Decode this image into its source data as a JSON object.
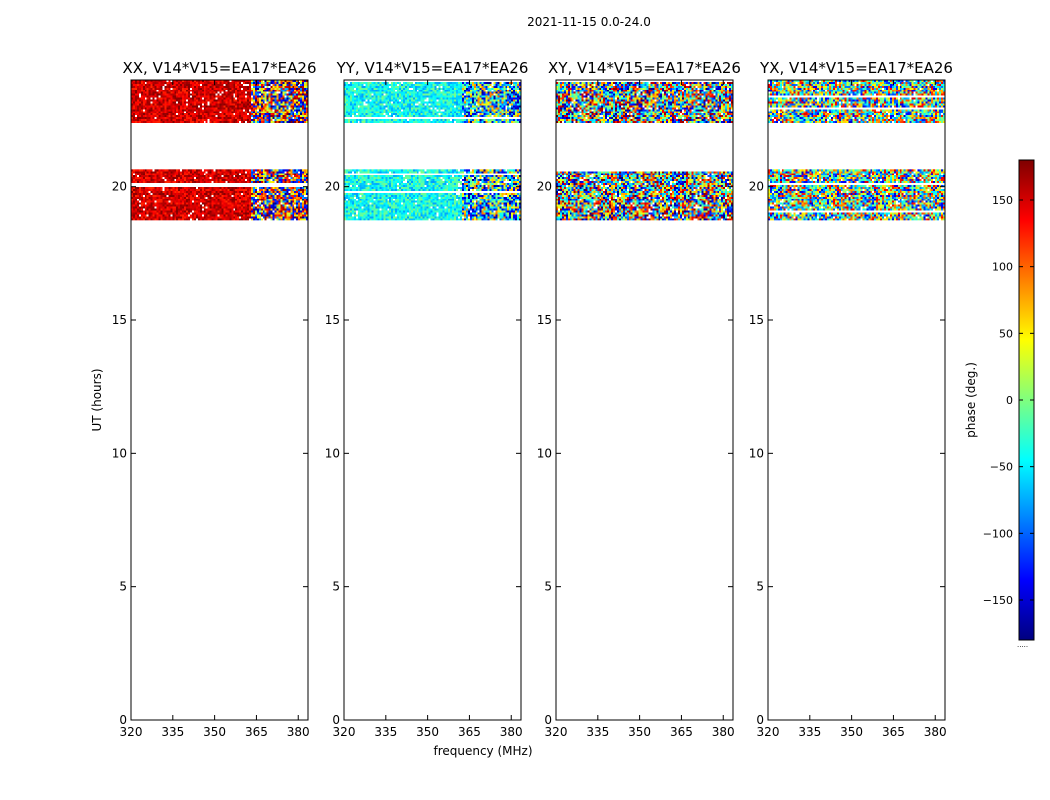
{
  "suptitle": "2021-11-15 0.0-24.0",
  "chart_data": {
    "type": "heatmap",
    "xlabel": "frequency (MHz)",
    "ylabel": "UT (hours)",
    "xlim": [
      320,
      383.5
    ],
    "ylim": [
      0,
      24
    ],
    "xticks": [
      320,
      335,
      350,
      365,
      380
    ],
    "yticks": [
      0,
      5,
      10,
      15,
      20
    ],
    "data_time_ranges_hours": [
      [
        22.4,
        24.0
      ],
      [
        18.75,
        20.65
      ]
    ],
    "colorbar": {
      "label": "phase (deg.)",
      "range": [
        -180,
        180
      ],
      "ticks": [
        150,
        100,
        50,
        0,
        -50,
        -100,
        -150
      ],
      "tick_labels": [
        "150",
        "100",
        "50",
        "0",
        "−50",
        "−100",
        "−150"
      ],
      "colormap": "jet",
      "stops": [
        "#00007f",
        "#0000ff",
        "#0080ff",
        "#00ffff",
        "#7fff7f",
        "#ffff00",
        "#ff8000",
        "#ff0000",
        "#7f0000"
      ],
      "footer": "....."
    },
    "panels": [
      {
        "title": "XX, V14*V15=EA17*EA26",
        "mean_phase_deg": 150,
        "spread_deg": 30,
        "noisy_above_mhz": 363
      },
      {
        "title": "YY, V14*V15=EA17*EA26",
        "mean_phase_deg": -40,
        "spread_deg": 40,
        "noisy_above_mhz": 362
      },
      {
        "title": "XY, V14*V15=EA17*EA26",
        "mean_phase_deg": 0,
        "spread_deg": 180,
        "noisy_above_mhz": 320
      },
      {
        "title": "YX, V14*V15=EA17*EA26",
        "mean_phase_deg": 0,
        "spread_deg": 150,
        "noisy_above_mhz": 320
      }
    ]
  }
}
